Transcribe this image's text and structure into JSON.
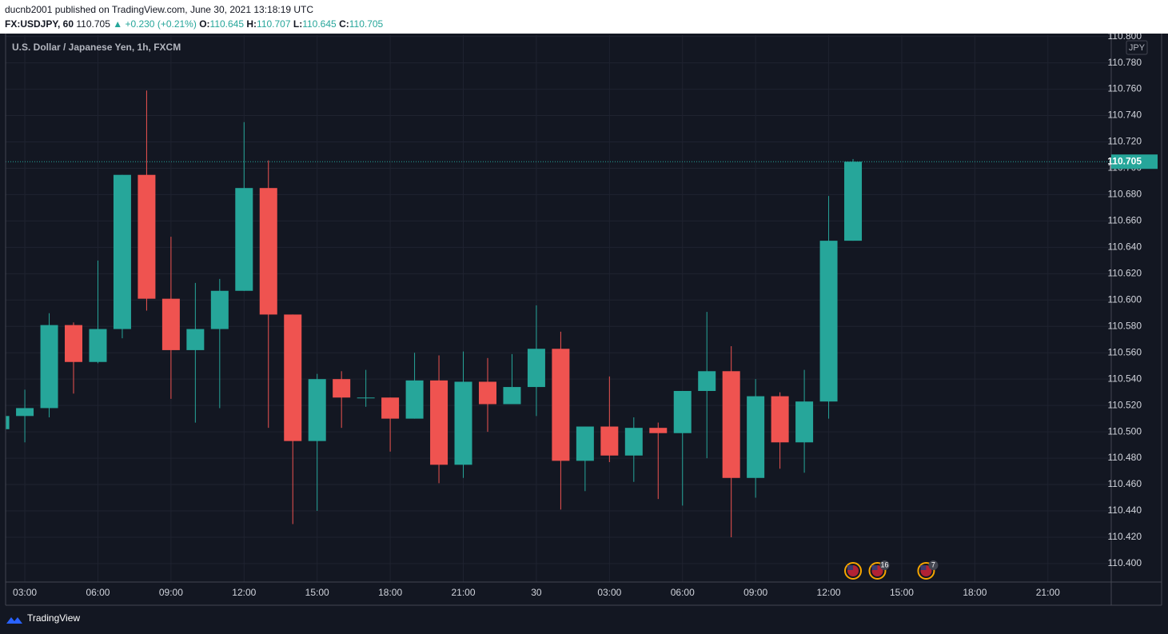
{
  "header": {
    "byline": "ducnb2001 published on TradingView.com, June 30, 2021 13:18:19 UTC",
    "symbol": "FX:USDJPY, 60",
    "last": "110.705",
    "change": "▲ +0.230 (+0.21%)",
    "ohlc": [
      {
        "label": "O:",
        "value": "110.645"
      },
      {
        "label": "H:",
        "value": "110.707"
      },
      {
        "label": "L:",
        "value": "110.645"
      },
      {
        "label": "C:",
        "value": "110.705"
      }
    ]
  },
  "footer": {
    "brand": "TradingView"
  },
  "chart_data": {
    "type": "candlestick",
    "legend": "U.S. Dollar / Japanese Yen, 1h, FXCM",
    "currency": "JPY",
    "up_color": "#26a69a",
    "down_color": "#ef5350",
    "grid": true,
    "x": [
      2,
      3,
      4,
      5,
      6,
      7,
      8,
      9,
      10,
      11,
      12,
      13,
      14,
      15,
      16,
      17,
      18,
      19,
      20,
      21,
      22,
      23,
      24,
      25,
      26,
      27,
      28,
      29,
      30,
      31,
      32,
      33,
      34,
      35,
      36,
      37
    ],
    "open": [
      110.502,
      110.512,
      110.518,
      110.581,
      110.553,
      110.578,
      110.695,
      110.601,
      110.562,
      110.578,
      110.607,
      110.685,
      110.589,
      110.493,
      110.54,
      110.526,
      110.526,
      110.51,
      110.539,
      110.475,
      110.538,
      110.521,
      110.534,
      110.563,
      110.478,
      110.504,
      110.482,
      110.503,
      110.499,
      110.531,
      110.546,
      110.465,
      110.527,
      110.492,
      110.523,
      110.645
    ],
    "high": [
      110.513,
      110.532,
      110.59,
      110.583,
      110.63,
      110.695,
      110.759,
      110.648,
      110.613,
      110.616,
      110.735,
      110.706,
      110.589,
      110.544,
      110.546,
      110.547,
      110.526,
      110.56,
      110.558,
      110.561,
      110.556,
      110.559,
      110.596,
      110.576,
      110.504,
      110.542,
      110.511,
      110.507,
      110.531,
      110.591,
      110.565,
      110.54,
      110.53,
      110.547,
      110.679,
      110.707
    ],
    "low": [
      110.5,
      110.492,
      110.511,
      110.529,
      110.552,
      110.571,
      110.592,
      110.525,
      110.507,
      110.518,
      110.607,
      110.503,
      110.43,
      110.44,
      110.503,
      110.519,
      110.485,
      110.51,
      110.461,
      110.465,
      110.5,
      110.521,
      110.512,
      110.441,
      110.455,
      110.477,
      110.462,
      110.449,
      110.444,
      110.48,
      110.42,
      110.45,
      110.472,
      110.469,
      110.51,
      110.645
    ],
    "close": [
      110.512,
      110.518,
      110.581,
      110.553,
      110.578,
      110.695,
      110.601,
      110.562,
      110.578,
      110.607,
      110.685,
      110.589,
      110.493,
      110.54,
      110.526,
      110.526,
      110.51,
      110.539,
      110.475,
      110.538,
      110.521,
      110.534,
      110.563,
      110.478,
      110.504,
      110.482,
      110.503,
      110.499,
      110.531,
      110.546,
      110.465,
      110.527,
      110.492,
      110.523,
      110.645,
      110.705
    ],
    "last_price": 110.705,
    "xlim": [
      2.21,
      47.6
    ],
    "xticks": [
      {
        "value": 3,
        "label": "03:00"
      },
      {
        "value": 6,
        "label": "06:00"
      },
      {
        "value": 9,
        "label": "09:00"
      },
      {
        "value": 12,
        "label": "12:00"
      },
      {
        "value": 15,
        "label": "15:00"
      },
      {
        "value": 18,
        "label": "18:00"
      },
      {
        "value": 21,
        "label": "21:00"
      },
      {
        "value": 24,
        "label": "30"
      },
      {
        "value": 27,
        "label": "03:00"
      },
      {
        "value": 30,
        "label": "06:00"
      },
      {
        "value": 33,
        "label": "09:00"
      },
      {
        "value": 36,
        "label": "12:00"
      },
      {
        "value": 39,
        "label": "15:00"
      },
      {
        "value": 42,
        "label": "18:00"
      },
      {
        "value": 45,
        "label": "21:00"
      }
    ],
    "ylim": [
      110.386,
      110.801
    ],
    "yticks": [
      {
        "value": 110.4,
        "label": "110.400"
      },
      {
        "value": 110.42,
        "label": "110.420"
      },
      {
        "value": 110.44,
        "label": "110.440"
      },
      {
        "value": 110.46,
        "label": "110.460"
      },
      {
        "value": 110.48,
        "label": "110.480"
      },
      {
        "value": 110.5,
        "label": "110.500"
      },
      {
        "value": 110.52,
        "label": "110.520"
      },
      {
        "value": 110.54,
        "label": "110.540"
      },
      {
        "value": 110.56,
        "label": "110.560"
      },
      {
        "value": 110.58,
        "label": "110.580"
      },
      {
        "value": 110.6,
        "label": "110.600"
      },
      {
        "value": 110.62,
        "label": "110.620"
      },
      {
        "value": 110.64,
        "label": "110.640"
      },
      {
        "value": 110.66,
        "label": "110.660"
      },
      {
        "value": 110.68,
        "label": "110.680"
      },
      {
        "value": 110.7,
        "label": "110.700"
      },
      {
        "value": 110.72,
        "label": "110.720"
      },
      {
        "value": 110.74,
        "label": "110.740"
      },
      {
        "value": 110.76,
        "label": "110.760"
      },
      {
        "value": 110.78,
        "label": "110.780"
      },
      {
        "value": 110.8,
        "label": "110.800"
      }
    ],
    "events": [
      {
        "x": 37
      },
      {
        "x": 38,
        "count": 16
      },
      {
        "x": 40,
        "count": 7
      }
    ]
  }
}
